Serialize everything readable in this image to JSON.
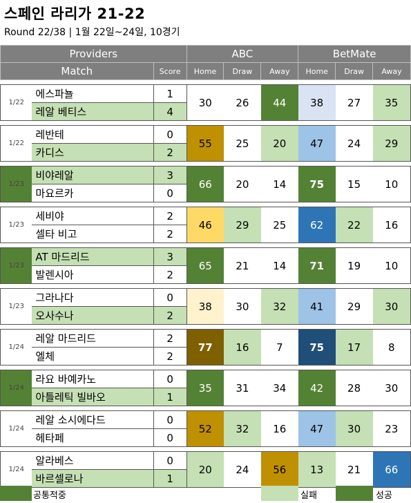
{
  "title": "스페인 라리가 21-22",
  "subtitle": "Round 22/38 | 1월 22일~24일, 10경기",
  "header": {
    "providers_label": "Providers",
    "match_label": "Match",
    "score_label": "Score",
    "provider_a": "ABC",
    "provider_b": "BetMate",
    "home_label": "Home",
    "draw_label": "Draw",
    "away_label": "Away"
  },
  "colors": {
    "header_gray": "#7f7f7f",
    "common_hit": "#548235",
    "miss": "#c5e0b4",
    "success": "#548235"
  },
  "matches": [
    {
      "date": "1/22",
      "home_team": "에스파뇰",
      "away_team": "레알 베티스",
      "home_score": "1",
      "away_score": "4",
      "date_bg": "#ffffff",
      "home_bg": "#ffffff",
      "away_bg": "#c5e0b4",
      "abc": [
        "30",
        "26",
        "44"
      ],
      "abc_bg": [
        "#ffffff",
        "#ffffff",
        "#548235"
      ],
      "abc_bold": [
        false,
        false,
        false
      ],
      "bm": [
        "38",
        "27",
        "35"
      ],
      "bm_bg": [
        "#dae3f3",
        "#ffffff",
        "#c5e0b4"
      ],
      "bm_bold": [
        false,
        false,
        false
      ]
    },
    {
      "date": "1/22",
      "home_team": "레반테",
      "away_team": "카디스",
      "home_score": "0",
      "away_score": "2",
      "date_bg": "#ffffff",
      "home_bg": "#ffffff",
      "away_bg": "#c5e0b4",
      "abc": [
        "55",
        "25",
        "20"
      ],
      "abc_bg": [
        "#bf9000",
        "#ffffff",
        "#c5e0b4"
      ],
      "abc_bold": [
        false,
        false,
        false
      ],
      "bm": [
        "47",
        "24",
        "29"
      ],
      "bm_bg": [
        "#9dc3e6",
        "#ffffff",
        "#c5e0b4"
      ],
      "bm_bold": [
        false,
        false,
        false
      ]
    },
    {
      "date": "1/23",
      "home_team": "비야레알",
      "away_team": "마요르카",
      "home_score": "3",
      "away_score": "0",
      "date_bg": "#548235",
      "home_bg": "#c5e0b4",
      "away_bg": "#ffffff",
      "abc": [
        "66",
        "20",
        "14"
      ],
      "abc_bg": [
        "#548235",
        "#ffffff",
        "#ffffff"
      ],
      "abc_bold": [
        false,
        false,
        false
      ],
      "bm": [
        "75",
        "15",
        "10"
      ],
      "bm_bg": [
        "#548235",
        "#ffffff",
        "#ffffff"
      ],
      "bm_bold": [
        true,
        false,
        false
      ]
    },
    {
      "date": "1/23",
      "home_team": "세비야",
      "away_team": "셀타 비고",
      "home_score": "2",
      "away_score": "2",
      "date_bg": "#ffffff",
      "home_bg": "#ffffff",
      "away_bg": "#ffffff",
      "abc": [
        "46",
        "29",
        "25"
      ],
      "abc_bg": [
        "#ffd966",
        "#c5e0b4",
        "#ffffff"
      ],
      "abc_bold": [
        false,
        false,
        false
      ],
      "bm": [
        "62",
        "22",
        "16"
      ],
      "bm_bg": [
        "#2e75b6",
        "#c5e0b4",
        "#ffffff"
      ],
      "bm_bold": [
        false,
        false,
        false
      ]
    },
    {
      "date": "1/23",
      "home_team": "AT 마드리드",
      "away_team": "발렌시아",
      "home_score": "3",
      "away_score": "2",
      "date_bg": "#548235",
      "home_bg": "#c5e0b4",
      "away_bg": "#ffffff",
      "abc": [
        "65",
        "21",
        "14"
      ],
      "abc_bg": [
        "#548235",
        "#ffffff",
        "#ffffff"
      ],
      "abc_bold": [
        false,
        false,
        false
      ],
      "bm": [
        "71",
        "19",
        "10"
      ],
      "bm_bg": [
        "#548235",
        "#ffffff",
        "#ffffff"
      ],
      "bm_bold": [
        true,
        false,
        false
      ]
    },
    {
      "date": "1/23",
      "home_team": "그라나다",
      "away_team": "오사수나",
      "home_score": "0",
      "away_score": "2",
      "date_bg": "#ffffff",
      "home_bg": "#ffffff",
      "away_bg": "#c5e0b4",
      "abc": [
        "38",
        "30",
        "32"
      ],
      "abc_bg": [
        "#fff2cc",
        "#ffffff",
        "#c5e0b4"
      ],
      "abc_bold": [
        false,
        false,
        false
      ],
      "bm": [
        "41",
        "29",
        "30"
      ],
      "bm_bg": [
        "#9dc3e6",
        "#ffffff",
        "#c5e0b4"
      ],
      "bm_bold": [
        false,
        false,
        false
      ]
    },
    {
      "date": "1/24",
      "home_team": "레알 마드리드",
      "away_team": "엘체",
      "home_score": "2",
      "away_score": "2",
      "date_bg": "#ffffff",
      "home_bg": "#ffffff",
      "away_bg": "#ffffff",
      "abc": [
        "77",
        "16",
        "7"
      ],
      "abc_bg": [
        "#7f6000",
        "#c5e0b4",
        "#ffffff"
      ],
      "abc_bold": [
        true,
        false,
        false
      ],
      "bm": [
        "75",
        "17",
        "8"
      ],
      "bm_bg": [
        "#1f4e79",
        "#c5e0b4",
        "#ffffff"
      ],
      "bm_bold": [
        true,
        false,
        false
      ]
    },
    {
      "date": "1/24",
      "home_team": "라요 바예카노",
      "away_team": "아틀레틱 빌바오",
      "home_score": "0",
      "away_score": "1",
      "date_bg": "#548235",
      "home_bg": "#ffffff",
      "away_bg": "#c5e0b4",
      "abc": [
        "35",
        "31",
        "34"
      ],
      "abc_bg": [
        "#548235",
        "#ffffff",
        "#ffffff"
      ],
      "abc_bold": [
        false,
        false,
        false
      ],
      "bm": [
        "42",
        "28",
        "30"
      ],
      "bm_bg": [
        "#548235",
        "#ffffff",
        "#ffffff"
      ],
      "bm_bold": [
        false,
        false,
        false
      ]
    },
    {
      "date": "1/24",
      "home_team": "레알 소시에다드",
      "away_team": "헤타페",
      "home_score": "0",
      "away_score": "0",
      "date_bg": "#ffffff",
      "home_bg": "#ffffff",
      "away_bg": "#ffffff",
      "abc": [
        "52",
        "32",
        "16"
      ],
      "abc_bg": [
        "#bf9000",
        "#c5e0b4",
        "#ffffff"
      ],
      "abc_bold": [
        false,
        false,
        false
      ],
      "bm": [
        "47",
        "30",
        "23"
      ],
      "bm_bg": [
        "#9dc3e6",
        "#c5e0b4",
        "#ffffff"
      ],
      "bm_bold": [
        false,
        false,
        false
      ]
    },
    {
      "date": "1/24",
      "home_team": "알라베스",
      "away_team": "바르셀로나",
      "home_score": "0",
      "away_score": "1",
      "date_bg": "#ffffff",
      "home_bg": "#ffffff",
      "away_bg": "#c5e0b4",
      "abc": [
        "20",
        "24",
        "56"
      ],
      "abc_bg": [
        "#c5e0b4",
        "#ffffff",
        "#bf9000"
      ],
      "abc_bold": [
        false,
        false,
        false
      ],
      "bm": [
        "13",
        "21",
        "66"
      ],
      "bm_bg": [
        "#c5e0b4",
        "#ffffff",
        "#2e75b6"
      ],
      "bm_bold": [
        false,
        false,
        false
      ]
    }
  ],
  "legend": {
    "common_label": "공통적중",
    "miss_label": "실패",
    "success_label": "성공"
  }
}
